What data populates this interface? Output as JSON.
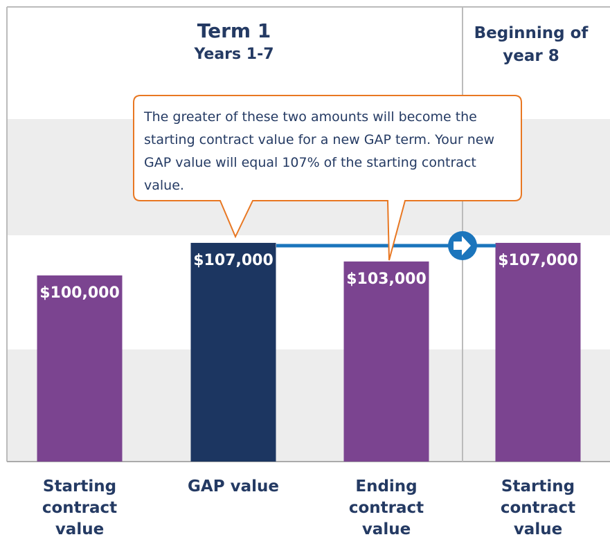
{
  "chart_data": {
    "type": "bar",
    "header": [
      "Term 1",
      "Years 1-7"
    ],
    "header_right": "Beginning of year 8",
    "annotation": "The greater of these two amounts will become the starting contract value for a new GAP term. Your new GAP value will equal 107% of the starting contract value.",
    "categories": [
      "Starting contract value",
      "GAP value",
      "Ending contract value",
      "Starting contract value"
    ],
    "values": [
      100000,
      107000,
      103000,
      107000
    ],
    "value_labels": [
      "$100,000",
      "$107,000",
      "$103,000",
      "$107,000"
    ],
    "colors": [
      "#7b4490",
      "#1c3661",
      "#7b4490",
      "#7b4490"
    ],
    "ylim": [
      60000,
      158000
    ]
  }
}
